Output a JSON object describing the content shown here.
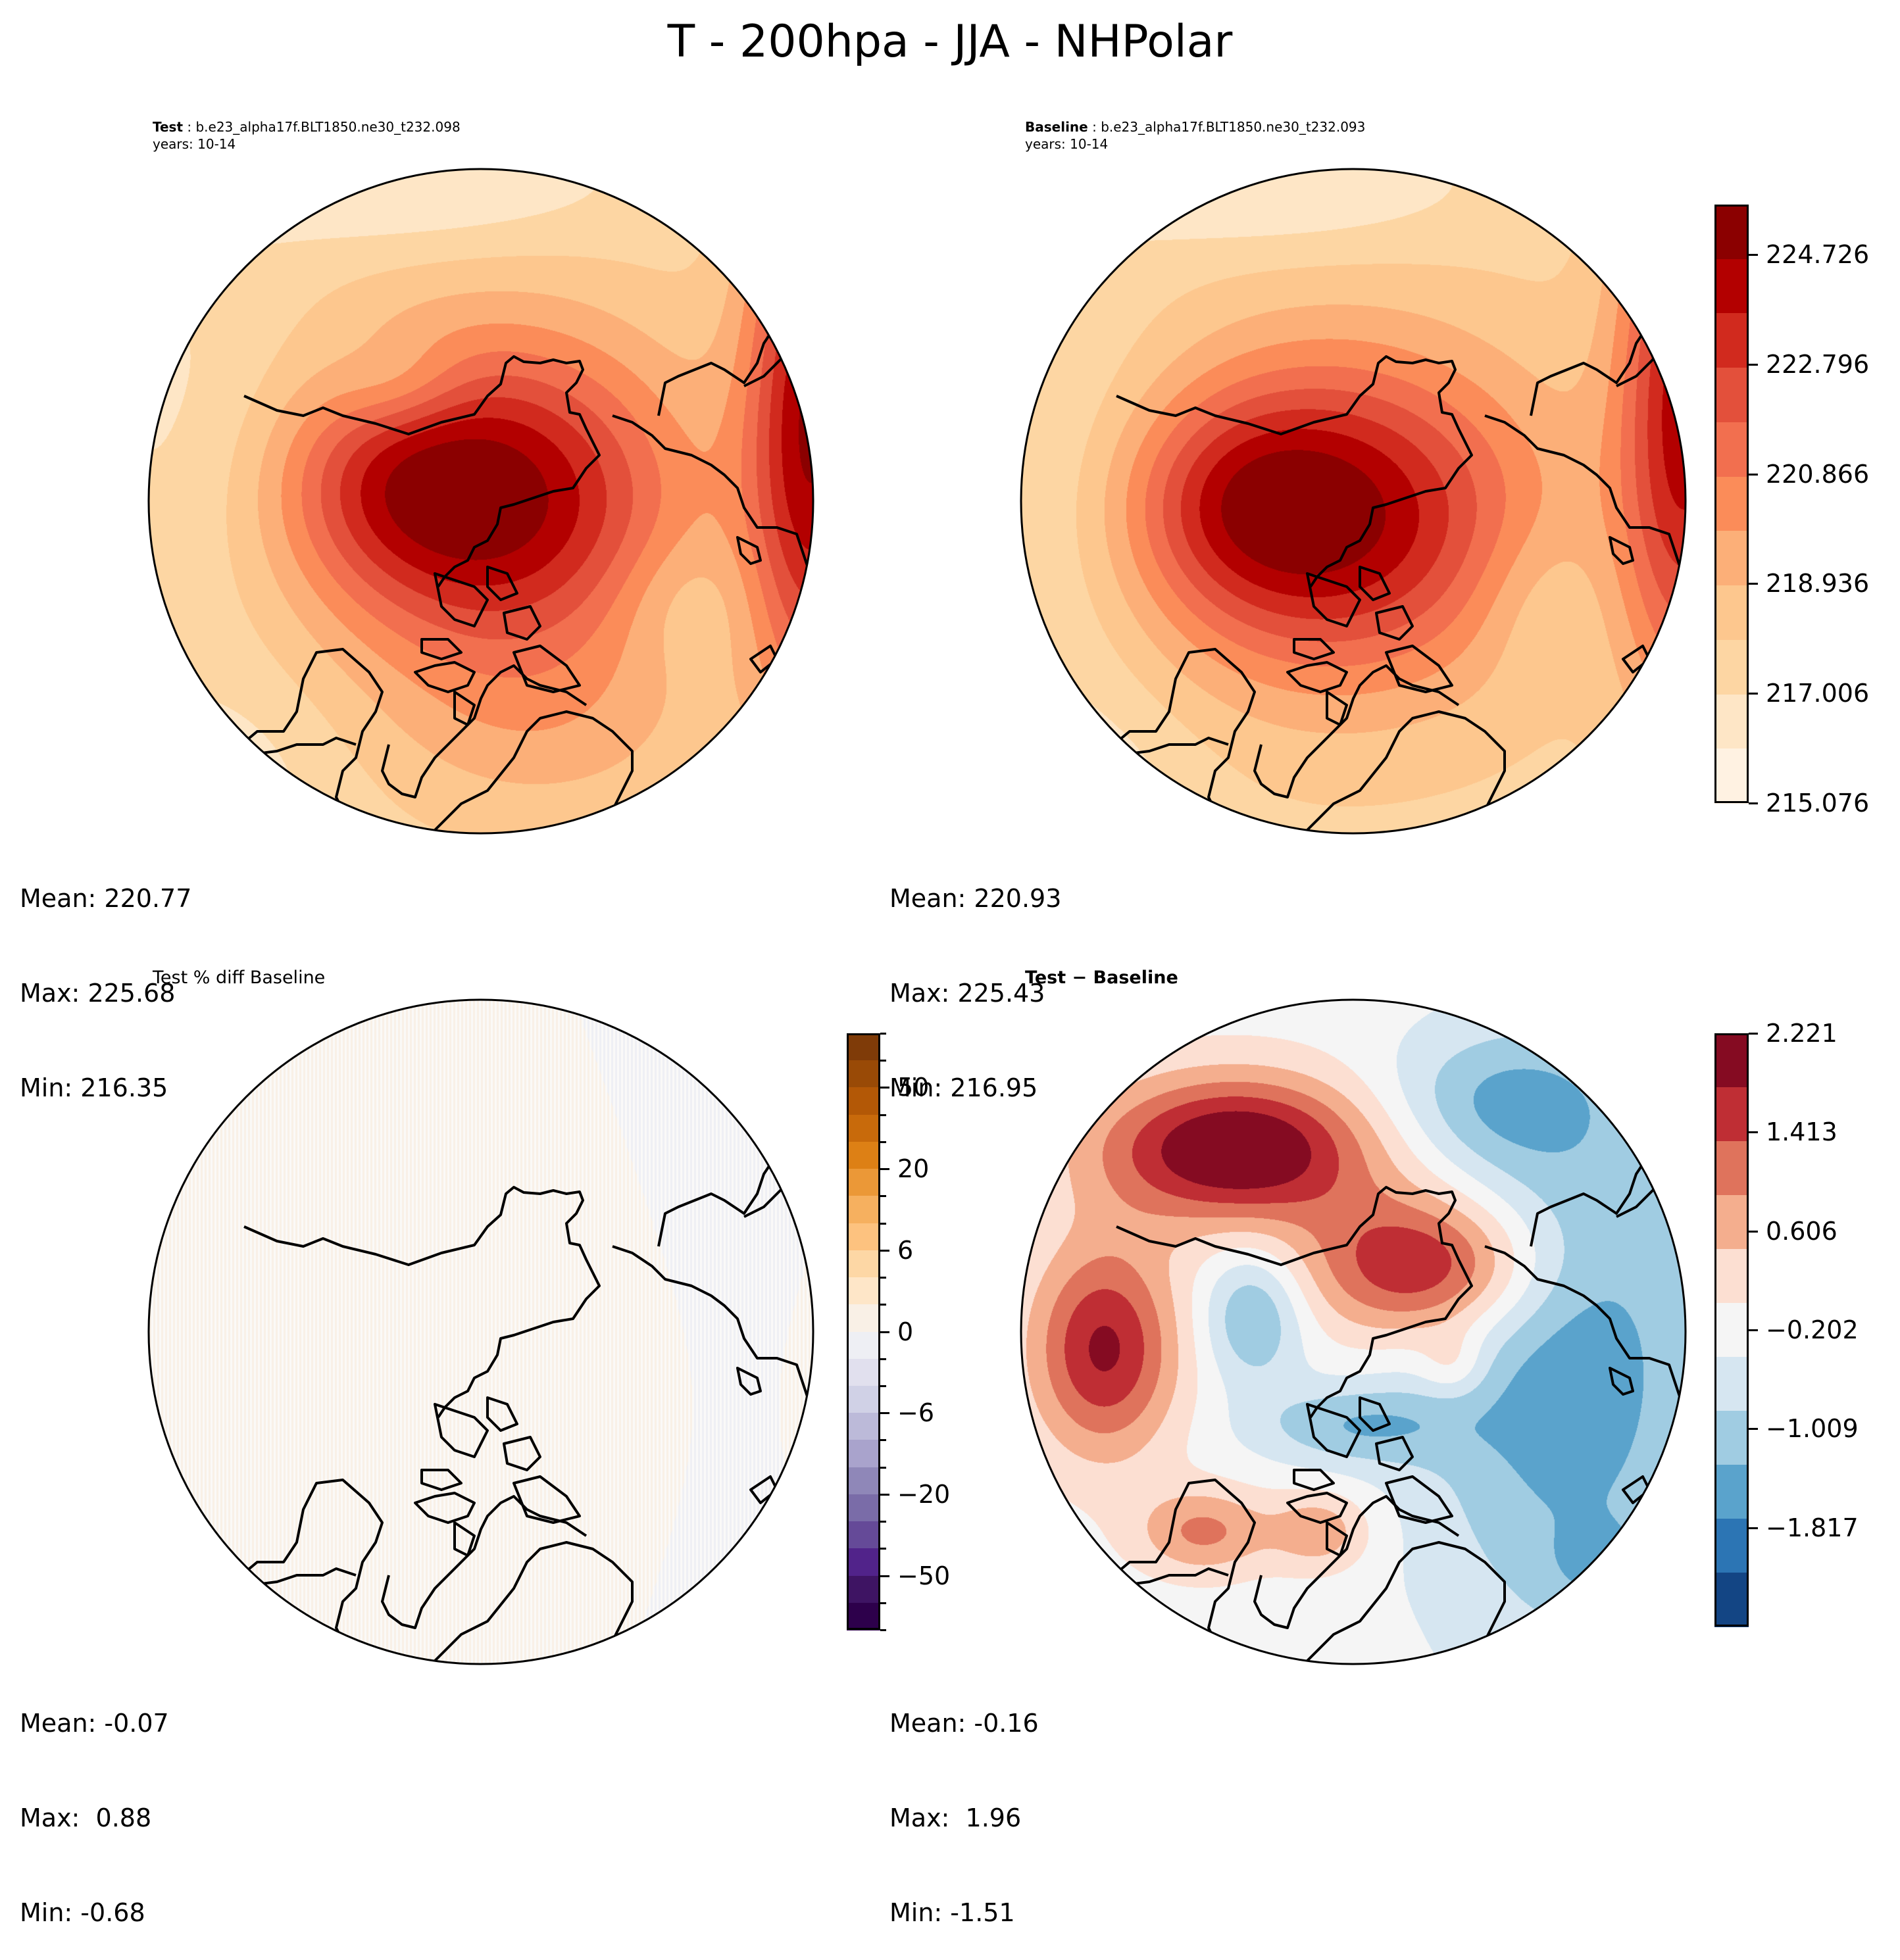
{
  "figure": {
    "suptitle": "T - 200hpa - JJA - NHPolar"
  },
  "panels": {
    "test": {
      "label_bold": "Test",
      "label_rest": " : b.e23_alpha17f.BLT1850.ne30_t232.098",
      "years": "years: 10-14",
      "stats": {
        "mean": "Mean: 220.77",
        "max": "Max: 225.68",
        "min": "Min: 216.35"
      }
    },
    "baseline": {
      "label_bold": "Baseline",
      "label_rest": " : b.e23_alpha17f.BLT1850.ne30_t232.093",
      "years": "years: 10-14",
      "stats": {
        "mean": "Mean: 220.93",
        "max": "Max: 225.43",
        "min": "Min: 216.95"
      }
    },
    "pctdiff": {
      "title": "Test % diff Baseline",
      "stats": {
        "mean": "Mean: -0.07",
        "max": "Max:  0.88",
        "min": "Min: -0.68"
      }
    },
    "diff": {
      "title": "Test − Baseline",
      "stats": {
        "mean": "Mean: -0.16",
        "max": "Max:  1.96",
        "min": "Min: -1.51"
      }
    }
  },
  "chart_data": [
    {
      "type": "heatmap",
      "title": "Test : b.e23_alpha17f.BLT1850.ne30_t232.098 (years: 10-14)",
      "projection": "North Polar Stereographic",
      "variable": "T",
      "level": "200hpa",
      "season": "JJA",
      "stats": {
        "mean": 220.77,
        "max": 225.68,
        "min": 216.35
      },
      "colormap": "OrRd",
      "shared_colorbar": "baseline"
    },
    {
      "type": "heatmap",
      "title": "Baseline : b.e23_alpha17f.BLT1850.ne30_t232.093 (years: 10-14)",
      "projection": "North Polar Stereographic",
      "variable": "T",
      "level": "200hpa",
      "season": "JJA",
      "stats": {
        "mean": 220.93,
        "max": 225.43,
        "min": 216.95
      },
      "colorbar": {
        "colormap": "OrRd",
        "levels": [
          215.076,
          215.953,
          216.831,
          217.708,
          218.586,
          219.463,
          220.341,
          221.218,
          222.096,
          222.973,
          223.851,
          224.726
        ],
        "tick_values": [
          215.076,
          217.006,
          218.936,
          220.866,
          222.796,
          224.726
        ],
        "tick_labels": [
          "215.076",
          "217.006",
          "218.936",
          "220.866",
          "222.796",
          "224.726"
        ],
        "colors": [
          "#fff2e2",
          "#fee6c6",
          "#fdd6a3",
          "#fdc78e",
          "#fcaf78",
          "#fb8c59",
          "#f26f4f",
          "#e3503b",
          "#d12a1e",
          "#b30000",
          "#8b0000"
        ],
        "extend": "max"
      }
    },
    {
      "type": "heatmap",
      "title": "Test % diff Baseline",
      "projection": "North Polar Stereographic",
      "stats": {
        "mean": -0.07,
        "max": 0.88,
        "min": -0.68
      },
      "colorbar": {
        "colormap": "PuOr_r",
        "tick_labels": [
          "50",
          "20",
          "6",
          "0",
          "−6",
          "−20",
          "−50"
        ],
        "tick_values": [
          50,
          20,
          6,
          0,
          -6,
          -20,
          -50
        ],
        "colors": [
          "#7f3b08",
          "#994a06",
          "#b35806",
          "#c86a0b",
          "#dd8015",
          "#eb9837",
          "#f6b05f",
          "#fdc27f",
          "#fdd7a5",
          "#fee6c8",
          "#f9f0e6",
          "#eeeff4",
          "#e1e0ee",
          "#d0d1e6",
          "#bcbad9",
          "#a9a3cc",
          "#8f87b8",
          "#7a6ca8",
          "#654a98",
          "#51238a",
          "#3e1463",
          "#2d004b"
        ],
        "extend": "both"
      }
    },
    {
      "type": "heatmap",
      "title": "Test − Baseline",
      "projection": "North Polar Stereographic",
      "stats": {
        "mean": -0.16,
        "max": 1.96,
        "min": -1.51
      },
      "colorbar": {
        "colormap": "RdBu_r",
        "levels": [
          -2.221,
          -1.817,
          -1.413,
          -1.009,
          -0.606,
          -0.202,
          0.202,
          0.606,
          1.009,
          1.413,
          1.817,
          2.221
        ],
        "tick_values": [
          2.221,
          1.413,
          0.606,
          -0.202,
          -1.009,
          -1.817
        ],
        "tick_labels": [
          "2.221",
          "1.413",
          "0.606",
          "−0.202",
          "−1.009",
          "−1.817"
        ],
        "colors": [
          "#850b22",
          "#bf2e34",
          "#df735c",
          "#f4ae8e",
          "#fcdfd2",
          "#f5f5f5",
          "#d6e6f1",
          "#a0cce2",
          "#5aa3cc",
          "#2c75b4",
          "#134584"
        ]
      }
    }
  ]
}
